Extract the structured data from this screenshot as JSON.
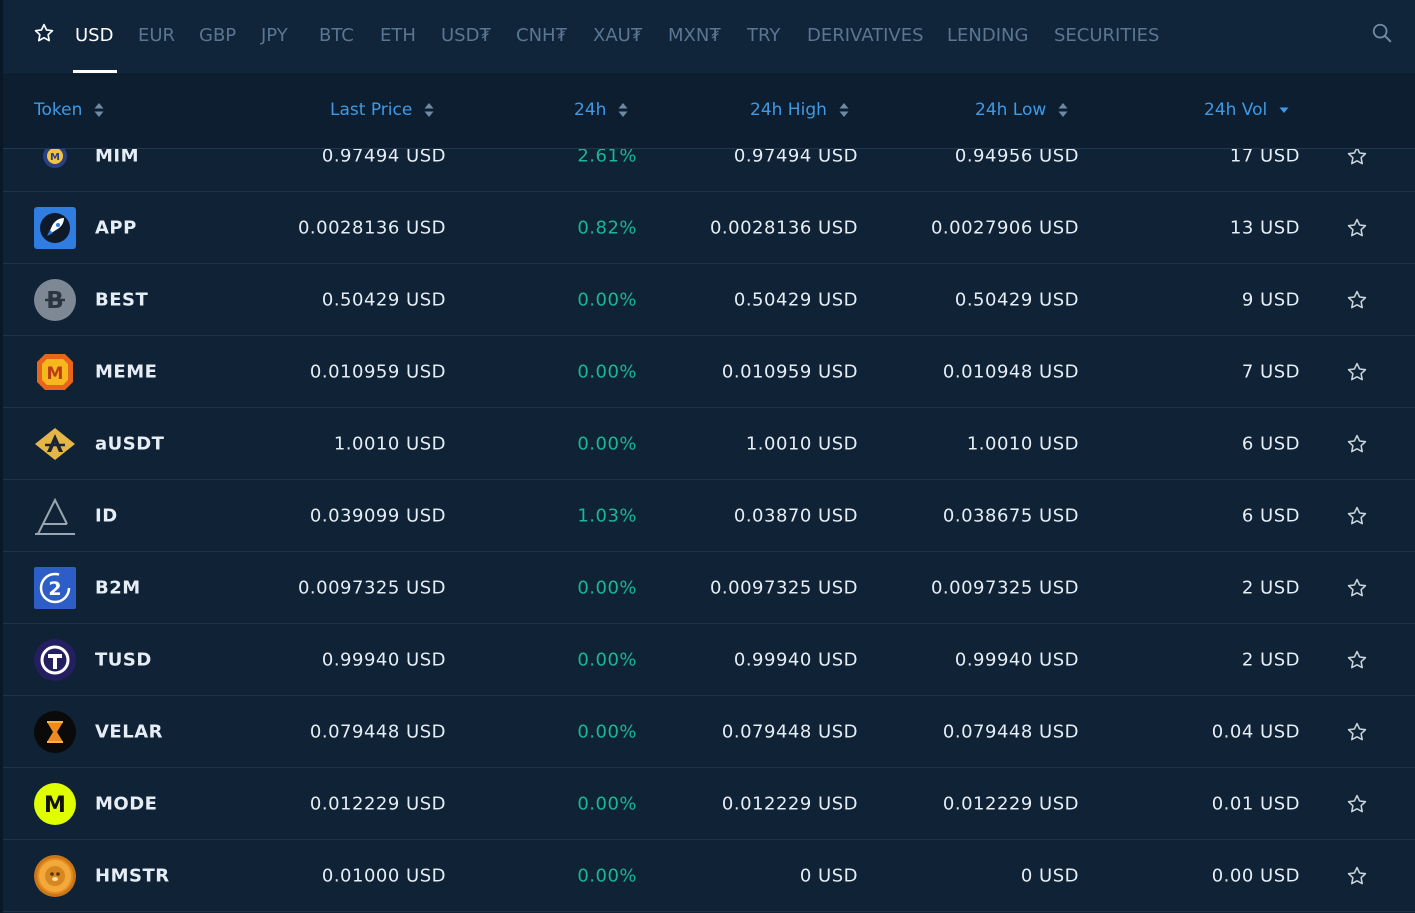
{
  "tabs": [
    {
      "label": "USD",
      "active": true
    },
    {
      "label": "EUR"
    },
    {
      "label": "GBP"
    },
    {
      "label": "JPY"
    },
    {
      "label": "BTC"
    },
    {
      "label": "ETH"
    },
    {
      "label": "USD₮"
    },
    {
      "label": "CNH₮"
    },
    {
      "label": "XAU₮"
    },
    {
      "label": "MXN₮"
    },
    {
      "label": "TRY"
    },
    {
      "label": "DERIVATIVES"
    },
    {
      "label": "LENDING"
    },
    {
      "label": "SECURITIES"
    }
  ],
  "icons": {
    "favorites": "star-outline-icon",
    "search": "search-icon",
    "row_action": "star-outline-icon"
  },
  "colors": {
    "accent": "#3f9ae6",
    "positive": "#18b896",
    "background": "#0f2236",
    "text": "#e6edf4"
  },
  "columns": {
    "token": "Token",
    "last_price": "Last Price",
    "change_24h": "24h",
    "high_24h": "24h High",
    "low_24h": "24h Low",
    "vol_24h": "24h Vol"
  },
  "sort": {
    "column": "vol_24h",
    "direction": "descending"
  },
  "rows": [
    {
      "token": "MIM",
      "price": "0.97494 USD",
      "change": "2.61%",
      "high": "0.97494 USD",
      "low": "0.94956 USD",
      "vol": "17 USD",
      "logo": "mim-logo"
    },
    {
      "token": "APP",
      "price": "0.0028136 USD",
      "change": "0.82%",
      "high": "0.0028136 USD",
      "low": "0.0027906 USD",
      "vol": "13 USD",
      "logo": "rocket-logo"
    },
    {
      "token": "BEST",
      "price": "0.50429 USD",
      "change": "0.00%",
      "high": "0.50429 USD",
      "low": "0.50429 USD",
      "vol": "9 USD",
      "logo": "best-logo"
    },
    {
      "token": "MEME",
      "price": "0.010959 USD",
      "change": "0.00%",
      "high": "0.010959 USD",
      "low": "0.010948 USD",
      "vol": "7 USD",
      "logo": "meme-logo"
    },
    {
      "token": "aUSDT",
      "price": "1.0010 USD",
      "change": "0.00%",
      "high": "1.0010 USD",
      "low": "1.0010 USD",
      "vol": "6 USD",
      "logo": "ausdt-logo"
    },
    {
      "token": "ID",
      "price": "0.039099 USD",
      "change": "1.03%",
      "high": "0.03870 USD",
      "low": "0.038675 USD",
      "vol": "6 USD",
      "logo": "id-logo"
    },
    {
      "token": "B2M",
      "price": "0.0097325 USD",
      "change": "0.00%",
      "high": "0.0097325 USD",
      "low": "0.0097325 USD",
      "vol": "2 USD",
      "logo": "b2m-logo"
    },
    {
      "token": "TUSD",
      "price": "0.99940 USD",
      "change": "0.00%",
      "high": "0.99940 USD",
      "low": "0.99940 USD",
      "vol": "2 USD",
      "logo": "tusd-logo"
    },
    {
      "token": "VELAR",
      "price": "0.079448 USD",
      "change": "0.00%",
      "high": "0.079448 USD",
      "low": "0.079448 USD",
      "vol": "0.04 USD",
      "logo": "velar-logo"
    },
    {
      "token": "MODE",
      "price": "0.012229 USD",
      "change": "0.00%",
      "high": "0.012229 USD",
      "low": "0.012229 USD",
      "vol": "0.01 USD",
      "logo": "mode-logo"
    },
    {
      "token": "HMSTR",
      "price": "0.01000 USD",
      "change": "0.00%",
      "high": "0 USD",
      "low": "0 USD",
      "vol": "0.00 USD",
      "logo": "hmstr-logo"
    }
  ]
}
